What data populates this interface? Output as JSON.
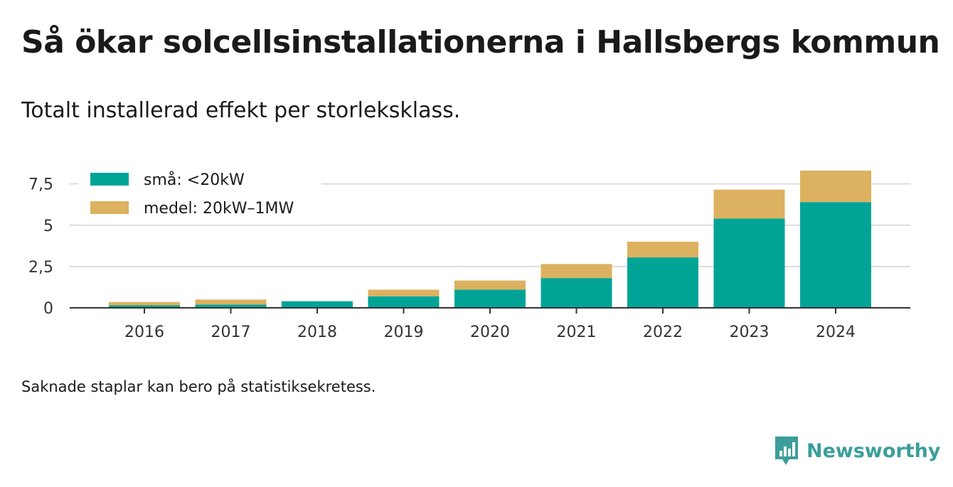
{
  "header": {
    "title": "Så ökar solcellsinstallationerna i Hallsbergs kommun",
    "subtitle": "Totalt installerad effekt per storleksklass."
  },
  "footer": {
    "note": "Saknade staplar kan bero på statistiksekretess.",
    "brand": "Newsworthy",
    "brand_color": "#3b9e9a",
    "brand_icon": "bar-chart-speech-bubble-icon"
  },
  "chart_data": {
    "type": "bar",
    "stacked": true,
    "categories": [
      "2016",
      "2017",
      "2018",
      "2019",
      "2020",
      "2021",
      "2022",
      "2023",
      "2024"
    ],
    "series": [
      {
        "name": "små: <20kW",
        "color": "#00a497",
        "values": [
          0.15,
          0.2,
          0.4,
          0.7,
          1.1,
          1.8,
          3.05,
          5.4,
          6.4
        ]
      },
      {
        "name": "medel: 20kW–1MW",
        "color": "#dcb15f",
        "values": [
          0.2,
          0.3,
          0.0,
          0.4,
          0.55,
          0.85,
          0.95,
          1.75,
          1.9
        ]
      }
    ],
    "yticks": [
      "0",
      "2,5",
      "5",
      "7,5"
    ],
    "ytick_values": [
      0,
      2.5,
      5,
      7.5
    ],
    "ylim": [
      0,
      8.5
    ],
    "xlabel": "",
    "ylabel": "",
    "grid": true,
    "legend": "top-left"
  }
}
